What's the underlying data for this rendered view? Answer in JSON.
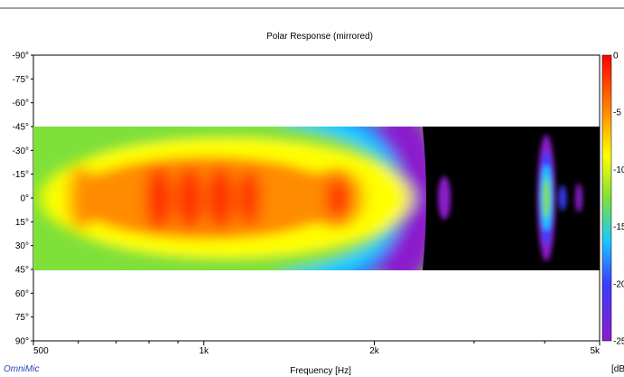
{
  "chart_data": {
    "type": "heatmap",
    "title": "Polar Response (mirrored)",
    "xlabel": "Frequency [Hz]",
    "ylabel": "",
    "x_scale": "log",
    "xlim": [
      500,
      5000
    ],
    "x_ticks": [
      500,
      1000,
      2000,
      5000
    ],
    "x_tick_labels": [
      "500",
      "1k",
      "2k",
      "5k"
    ],
    "y_ticks": [
      -90,
      -75,
      -60,
      -45,
      -30,
      -15,
      0,
      15,
      30,
      45,
      60,
      75,
      90
    ],
    "y_tick_labels": [
      "-90°",
      "-75°",
      "-60°",
      "-45°",
      "-30°",
      "-15°",
      "0°",
      "15°",
      "30°",
      "45°",
      "60°",
      "75°",
      "90°"
    ],
    "ylim": [
      -90,
      90
    ],
    "data_range_deg": [
      -45,
      45
    ],
    "colorbar": {
      "unit": "[dB",
      "tick_labels": [
        "0",
        "-5",
        "-10",
        "-15",
        "-20",
        "-25"
      ],
      "range": [
        -25,
        0
      ],
      "colors": [
        "#ff0000",
        "#ff8c00",
        "#ffff00",
        "#7fe03a",
        "#19c8ff",
        "#3a3cff",
        "#8b1ccc"
      ],
      "below_range_color": "#000000"
    },
    "brand": "OmniMic"
  }
}
